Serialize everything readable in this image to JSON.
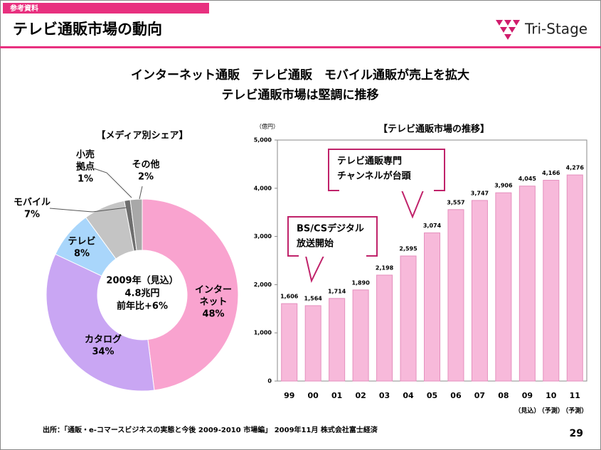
{
  "header": {
    "tag": "参考資料",
    "title": "テレビ通販市場の動向",
    "logo": "Tri-Stage"
  },
  "headline": [
    "インターネット通販　テレビ通販　モバイル通販が売上を拡大",
    "テレビ通販市場は堅調に推移"
  ],
  "chart_data": [
    {
      "type": "pie",
      "title": "【メディア別シェア】",
      "center_text": [
        "2009年（見込）",
        "4.8兆円",
        "前年比+6%"
      ],
      "categories": [
        [
          "インター",
          "ネット"
        ],
        [
          "カタログ"
        ],
        [
          "テレビ"
        ],
        [
          "モバイル"
        ],
        [
          "小売",
          "拠点"
        ],
        [
          "その他"
        ]
      ],
      "values": [
        48,
        34,
        8,
        7,
        1,
        2
      ],
      "value_labels": [
        "48%",
        "34%",
        "8%",
        "7%",
        "1%",
        "2%"
      ],
      "colors": [
        "#f9a3cf",
        "#c9a6f3",
        "#a9d6fb",
        "#c4c4c4",
        "#6e6e6e",
        "#a8a8a8"
      ]
    },
    {
      "type": "bar",
      "title": "【テレビ通販市場の推移】",
      "y_unit": "（億円）",
      "categories": [
        "99",
        "00",
        "01",
        "02",
        "03",
        "04",
        "05",
        "06",
        "07",
        "08",
        "09",
        "10",
        "11"
      ],
      "x_notes": [
        null,
        null,
        null,
        null,
        null,
        null,
        null,
        null,
        null,
        null,
        "（見込）",
        "（予測）",
        "（予測）"
      ],
      "values": [
        1606,
        1564,
        1714,
        1890,
        2198,
        2595,
        3074,
        3557,
        3747,
        3906,
        4045,
        4166,
        4276
      ],
      "value_labels": [
        "1,606",
        "1,564",
        "1,714",
        "1,890",
        "2,198",
        "2,595",
        "3,074",
        "3,557",
        "3,747",
        "3,906",
        "4,045",
        "4,166",
        "4,276"
      ],
      "color": "#f7b9da",
      "ylim": [
        0,
        5000
      ],
      "yticks": [
        0,
        {
          "value": 1000,
          "label": "1,000"
        },
        {
          "value": 2000,
          "label": "2,000"
        },
        {
          "value": 3000,
          "label": "3,000"
        },
        {
          "value": 4000,
          "label": "4,000"
        },
        {
          "value": 5000,
          "label": "5,000"
        }
      ],
      "annotations": [
        [
          "BS/CSデジタル",
          "放送開始"
        ],
        [
          "テレビ通販専門",
          "チャンネルが台頭"
        ]
      ]
    }
  ],
  "source": "出所：「通販・e-コマースビジネスの実態と今後 2009-2010 市場編」 2009年11月 株式会社富士経済",
  "page_number": "29"
}
